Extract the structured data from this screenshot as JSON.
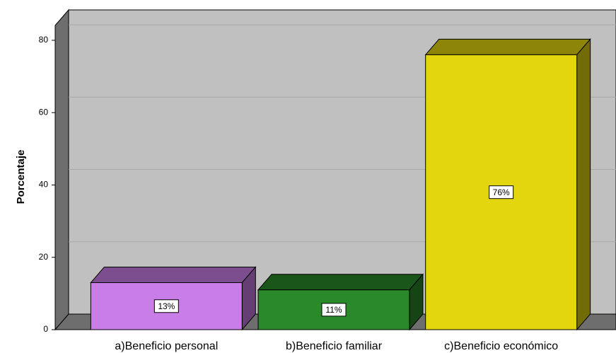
{
  "chart_data": {
    "type": "bar3d",
    "y_label": "Porcentaje",
    "categories": [
      "a)Beneficio personal",
      "b)Beneficio familiar",
      "c)Beneficio económico"
    ],
    "values": [
      13,
      11,
      76
    ],
    "value_labels": [
      "13%",
      "11%",
      "76%"
    ],
    "colors": [
      "#c97de6",
      "#2a8a2a",
      "#e3d60f"
    ],
    "ylim": [
      0,
      84
    ],
    "yticks": [
      0,
      20,
      40,
      60,
      80
    ],
    "grid": true
  }
}
